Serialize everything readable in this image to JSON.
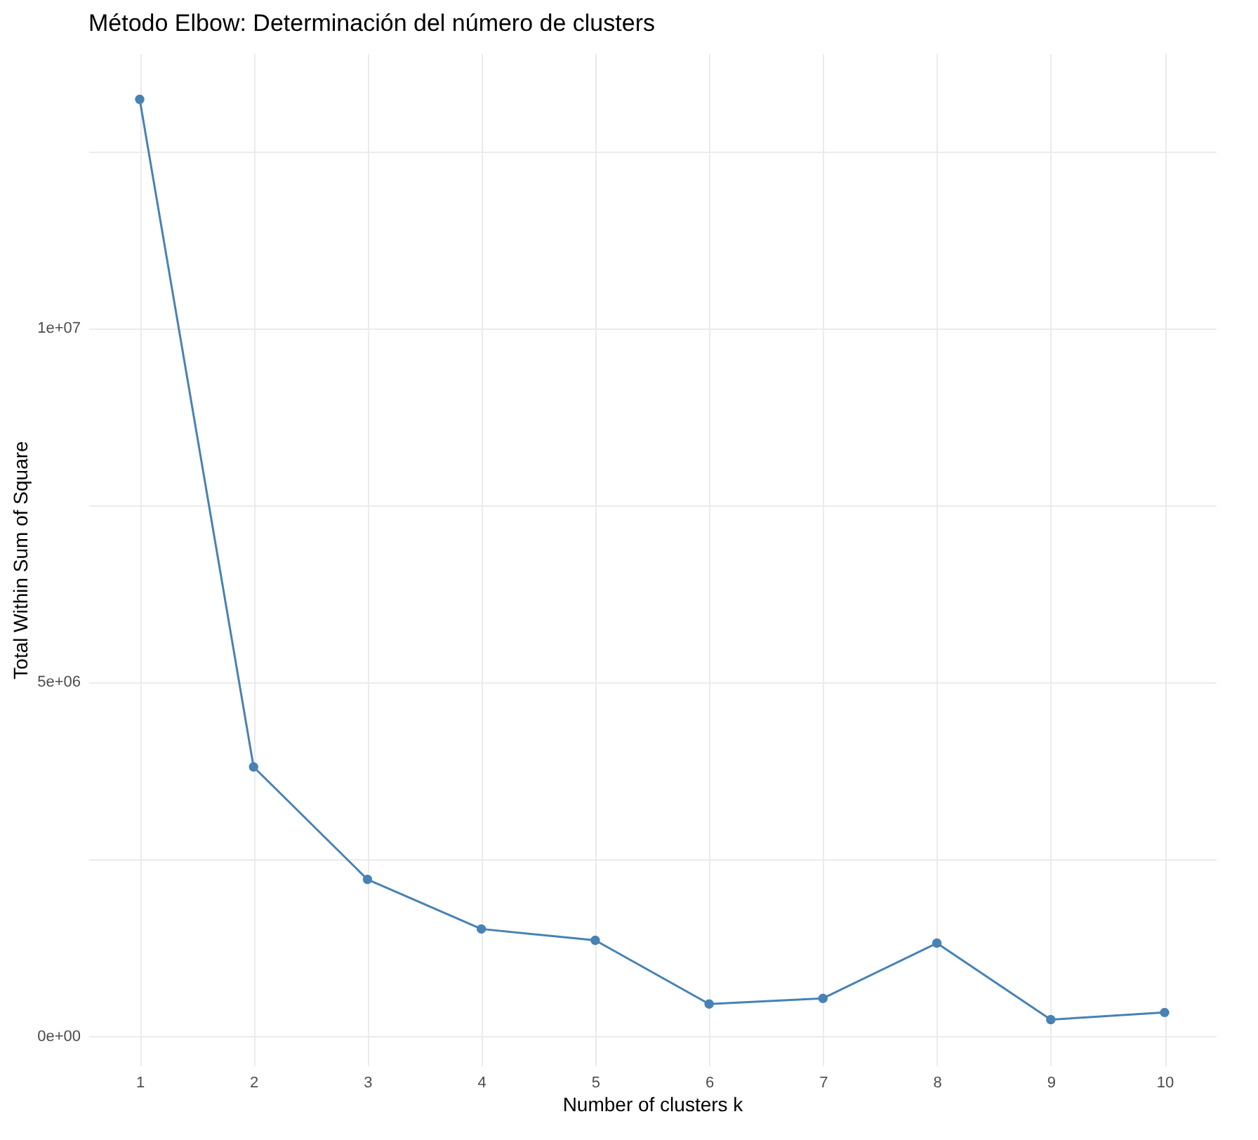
{
  "chart_data": {
    "type": "line",
    "title": "Método Elbow: Determinación del número de clusters",
    "xlabel": "Number of clusters k",
    "ylabel": "Total Within Sum of Square",
    "x": [
      1,
      2,
      3,
      4,
      5,
      6,
      7,
      8,
      9,
      10
    ],
    "series": [
      {
        "color": "#4682b4",
        "values": [
          13230000,
          3800000,
          2210000,
          1510000,
          1350000,
          450000,
          530000,
          1310000,
          230000,
          330000
        ]
      }
    ],
    "xlim": [
      0.55,
      10.45
    ],
    "xticks": [
      1,
      2,
      3,
      4,
      5,
      6,
      7,
      8,
      9,
      10
    ],
    "ylim": [
      -420000,
      13880000
    ],
    "yticks": [
      {
        "value": 0,
        "label": "0e+00"
      },
      {
        "value": 2500000,
        "label": null
      },
      {
        "value": 5000000,
        "label": "5e+06"
      },
      {
        "value": 7500000,
        "label": null
      },
      {
        "value": 10000000,
        "label": "1e+07"
      },
      {
        "value": 12500000,
        "label": null
      }
    ],
    "grid": true,
    "marker": "circle",
    "line_style": "solid"
  }
}
